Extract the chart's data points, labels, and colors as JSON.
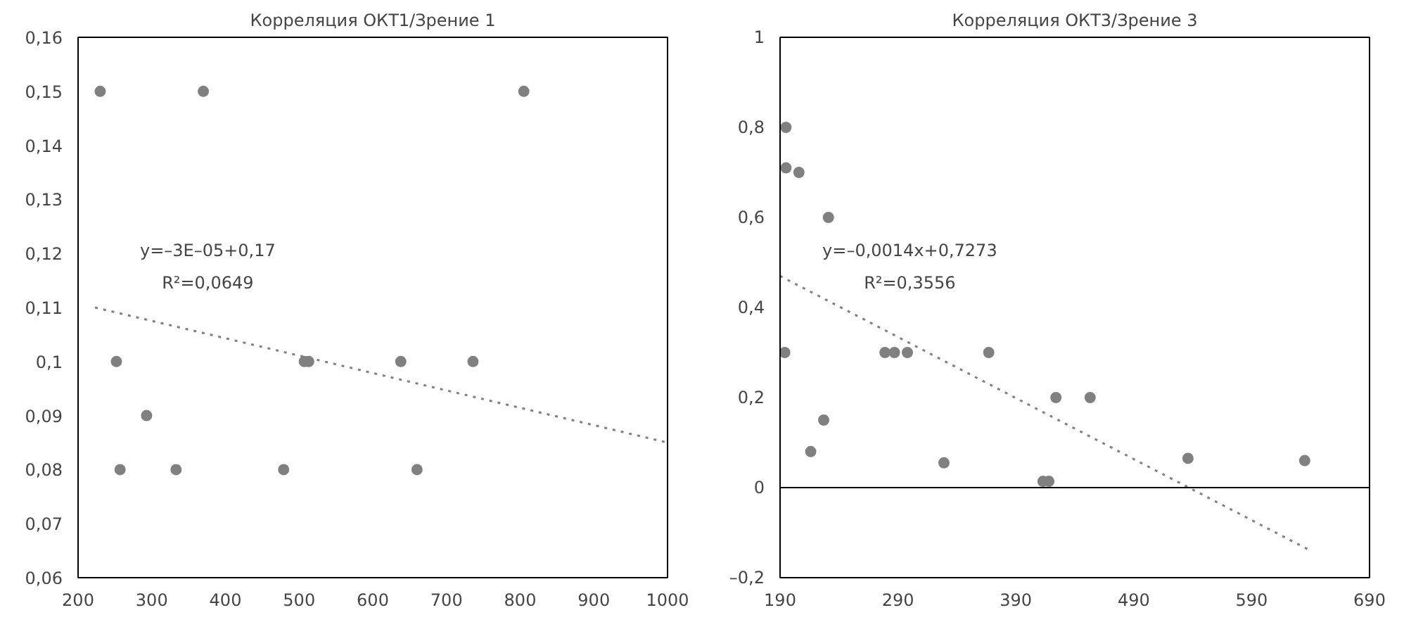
{
  "chart_data": [
    {
      "type": "scatter",
      "title": "Корреляция ОКТ1/Зрение 1",
      "xlim": [
        200,
        1000
      ],
      "xticks": [
        200,
        300,
        400,
        500,
        600,
        700,
        800,
        900,
        1000
      ],
      "ylim": [
        0.06,
        0.16
      ],
      "yticks": [
        {
          "value": 0.06,
          "label": "0,06"
        },
        {
          "value": 0.07,
          "label": "0,07"
        },
        {
          "value": 0.08,
          "label": "0,08"
        },
        {
          "value": 0.09,
          "label": "0,09"
        },
        {
          "value": 0.1,
          "label": "0,1"
        },
        {
          "value": 0.11,
          "label": "0,11"
        },
        {
          "value": 0.12,
          "label": "0,12"
        },
        {
          "value": 0.13,
          "label": "0,13"
        },
        {
          "value": 0.14,
          "label": "0,14"
        },
        {
          "value": 0.15,
          "label": "0,15"
        },
        {
          "value": 0.16,
          "label": "0,16"
        }
      ],
      "grid": false,
      "series": [
        {
          "marker": "circle",
          "color": "#808080",
          "x": [
            230,
            370,
            805,
            252,
            257,
            293,
            333,
            479,
            507,
            513,
            638,
            660,
            736
          ],
          "values": [
            0.15,
            0.15,
            0.15,
            0.1,
            0.08,
            0.09,
            0.08,
            0.08,
            0.1,
            0.1,
            0.1,
            0.08,
            0.1
          ]
        },
        {
          "type": "line",
          "marker": "none",
          "line_style": "dotted",
          "color": "#808080",
          "x": [
            223,
            1000
          ],
          "values": [
            0.11,
            0.085
          ]
        }
      ],
      "annotations": [
        "y=–3E–05+0,17",
        "R²=0,0649"
      ]
    },
    {
      "type": "scatter",
      "title": "Корреляция ОКТ3/Зрение 3",
      "xlim": [
        190,
        690
      ],
      "xticks": [
        190,
        290,
        390,
        490,
        590,
        690
      ],
      "ylim": [
        -0.2,
        1
      ],
      "yticks": [
        {
          "value": -0.2,
          "label": "–0,2"
        },
        0,
        {
          "value": 0.2,
          "label": "0,2"
        },
        {
          "value": 0.4,
          "label": "0,4"
        },
        {
          "value": 0.6,
          "label": "0,6"
        },
        {
          "value": 0.8,
          "label": "0,8"
        },
        1
      ],
      "grid": false,
      "ref_lines": [
        {
          "axis": "y",
          "value": 0,
          "color": "#000000"
        }
      ],
      "series": [
        {
          "marker": "circle",
          "color": "#808080",
          "x": [
            195,
            195,
            206,
            231,
            194,
            227,
            216,
            279,
            287,
            298,
            329,
            367,
            413,
            418,
            424,
            453,
            536,
            635
          ],
          "values": [
            0.8,
            0.71,
            0.7,
            0.6,
            0.3,
            0.15,
            0.08,
            0.3,
            0.3,
            0.3,
            0.055,
            0.3,
            0.014,
            0.014,
            0.2,
            0.2,
            0.065,
            0.06
          ]
        },
        {
          "type": "line",
          "marker": "none",
          "line_style": "dotted",
          "color": "#808080",
          "x": [
            190,
            640
          ],
          "values": [
            0.47,
            -0.14
          ]
        }
      ],
      "annotations": [
        "y=–0,0014x+0,7273",
        "R²=0,3556"
      ]
    }
  ]
}
